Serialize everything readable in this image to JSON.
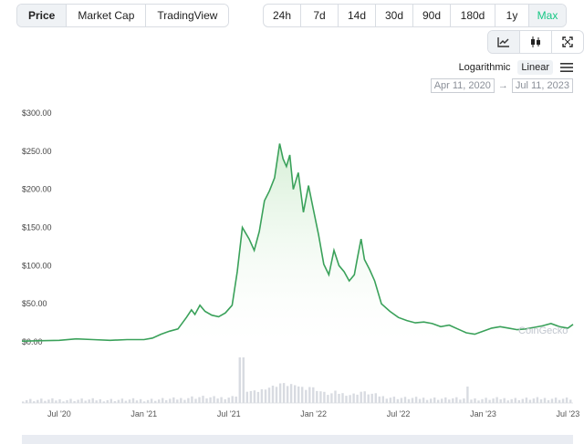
{
  "tabs": [
    "Price",
    "Market Cap",
    "TradingView"
  ],
  "active_tab": "Price",
  "ranges": [
    "24h",
    "7d",
    "14d",
    "30d",
    "90d",
    "180d",
    "1y",
    "Max"
  ],
  "active_range": "Max",
  "scale": {
    "log_label": "Logarithmic",
    "linear_label": "Linear",
    "active": "Linear"
  },
  "date_range": {
    "from": "Apr 11, 2020",
    "to": "Jul 11, 2023"
  },
  "watermark": "CoinGecko",
  "colors": {
    "line": "#3aa15a",
    "fill_top": "#cfeccf",
    "volume": "#d8dbe1",
    "accent": "#16c784"
  },
  "chart_data": {
    "type": "area",
    "ylim": [
      0,
      300
    ],
    "yticks": [
      "$0.00",
      "$50.00",
      "$100.00",
      "$150.00",
      "$200.00",
      "$250.00",
      "$300.00"
    ],
    "ytick_values": [
      0,
      50,
      100,
      150,
      200,
      250,
      300
    ],
    "xticks": [
      {
        "label": "Jul '20",
        "t": 2020.5
      },
      {
        "label": "Jan '21",
        "t": 2021.0
      },
      {
        "label": "Jul '21",
        "t": 2021.5
      },
      {
        "label": "Jan '22",
        "t": 2022.0
      },
      {
        "label": "Jul '22",
        "t": 2022.5
      },
      {
        "label": "Jan '23",
        "t": 2023.0
      },
      {
        "label": "Jul '23",
        "t": 2023.5
      }
    ],
    "xlim": [
      2020.28,
      2023.53
    ],
    "series": [
      {
        "x": [
          2020.28,
          2020.4,
          2020.5,
          2020.6,
          2020.7,
          2020.8,
          2020.9,
          2021.0,
          2021.05,
          2021.1,
          2021.15,
          2021.2,
          2021.25,
          2021.28,
          2021.3,
          2021.33,
          2021.36,
          2021.4,
          2021.44,
          2021.48,
          2021.52,
          2021.55,
          2021.58,
          2021.62,
          2021.65,
          2021.68,
          2021.71,
          2021.74,
          2021.77,
          2021.8,
          2021.82,
          2021.84,
          2021.86,
          2021.88,
          2021.91,
          2021.94,
          2021.97,
          2022.0,
          2022.03,
          2022.06,
          2022.09,
          2022.12,
          2022.15,
          2022.18,
          2022.21,
          2022.24,
          2022.26,
          2022.28,
          2022.3,
          2022.33,
          2022.36,
          2022.4,
          2022.45,
          2022.5,
          2022.55,
          2022.6,
          2022.65,
          2022.7,
          2022.75,
          2022.8,
          2022.85,
          2022.88,
          2022.9,
          2022.95,
          2023.0,
          2023.05,
          2023.1,
          2023.15,
          2023.2,
          2023.25,
          2023.3,
          2023.35,
          2023.4,
          2023.45,
          2023.5,
          2023.53
        ],
        "y": [
          1,
          1.5,
          2,
          4,
          3,
          2,
          3,
          3,
          5,
          10,
          14,
          17,
          32,
          42,
          36,
          48,
          40,
          35,
          33,
          38,
          48,
          92,
          150,
          135,
          120,
          145,
          185,
          198,
          215,
          260,
          240,
          230,
          245,
          200,
          222,
          170,
          205,
          172,
          140,
          102,
          88,
          120,
          100,
          92,
          80,
          88,
          112,
          135,
          108,
          95,
          80,
          50,
          40,
          32,
          28,
          25,
          26,
          24,
          20,
          22,
          17,
          14,
          12,
          10,
          14,
          18,
          20,
          18,
          16,
          17,
          19,
          21,
          24,
          20,
          18,
          23
        ]
      }
    ]
  }
}
